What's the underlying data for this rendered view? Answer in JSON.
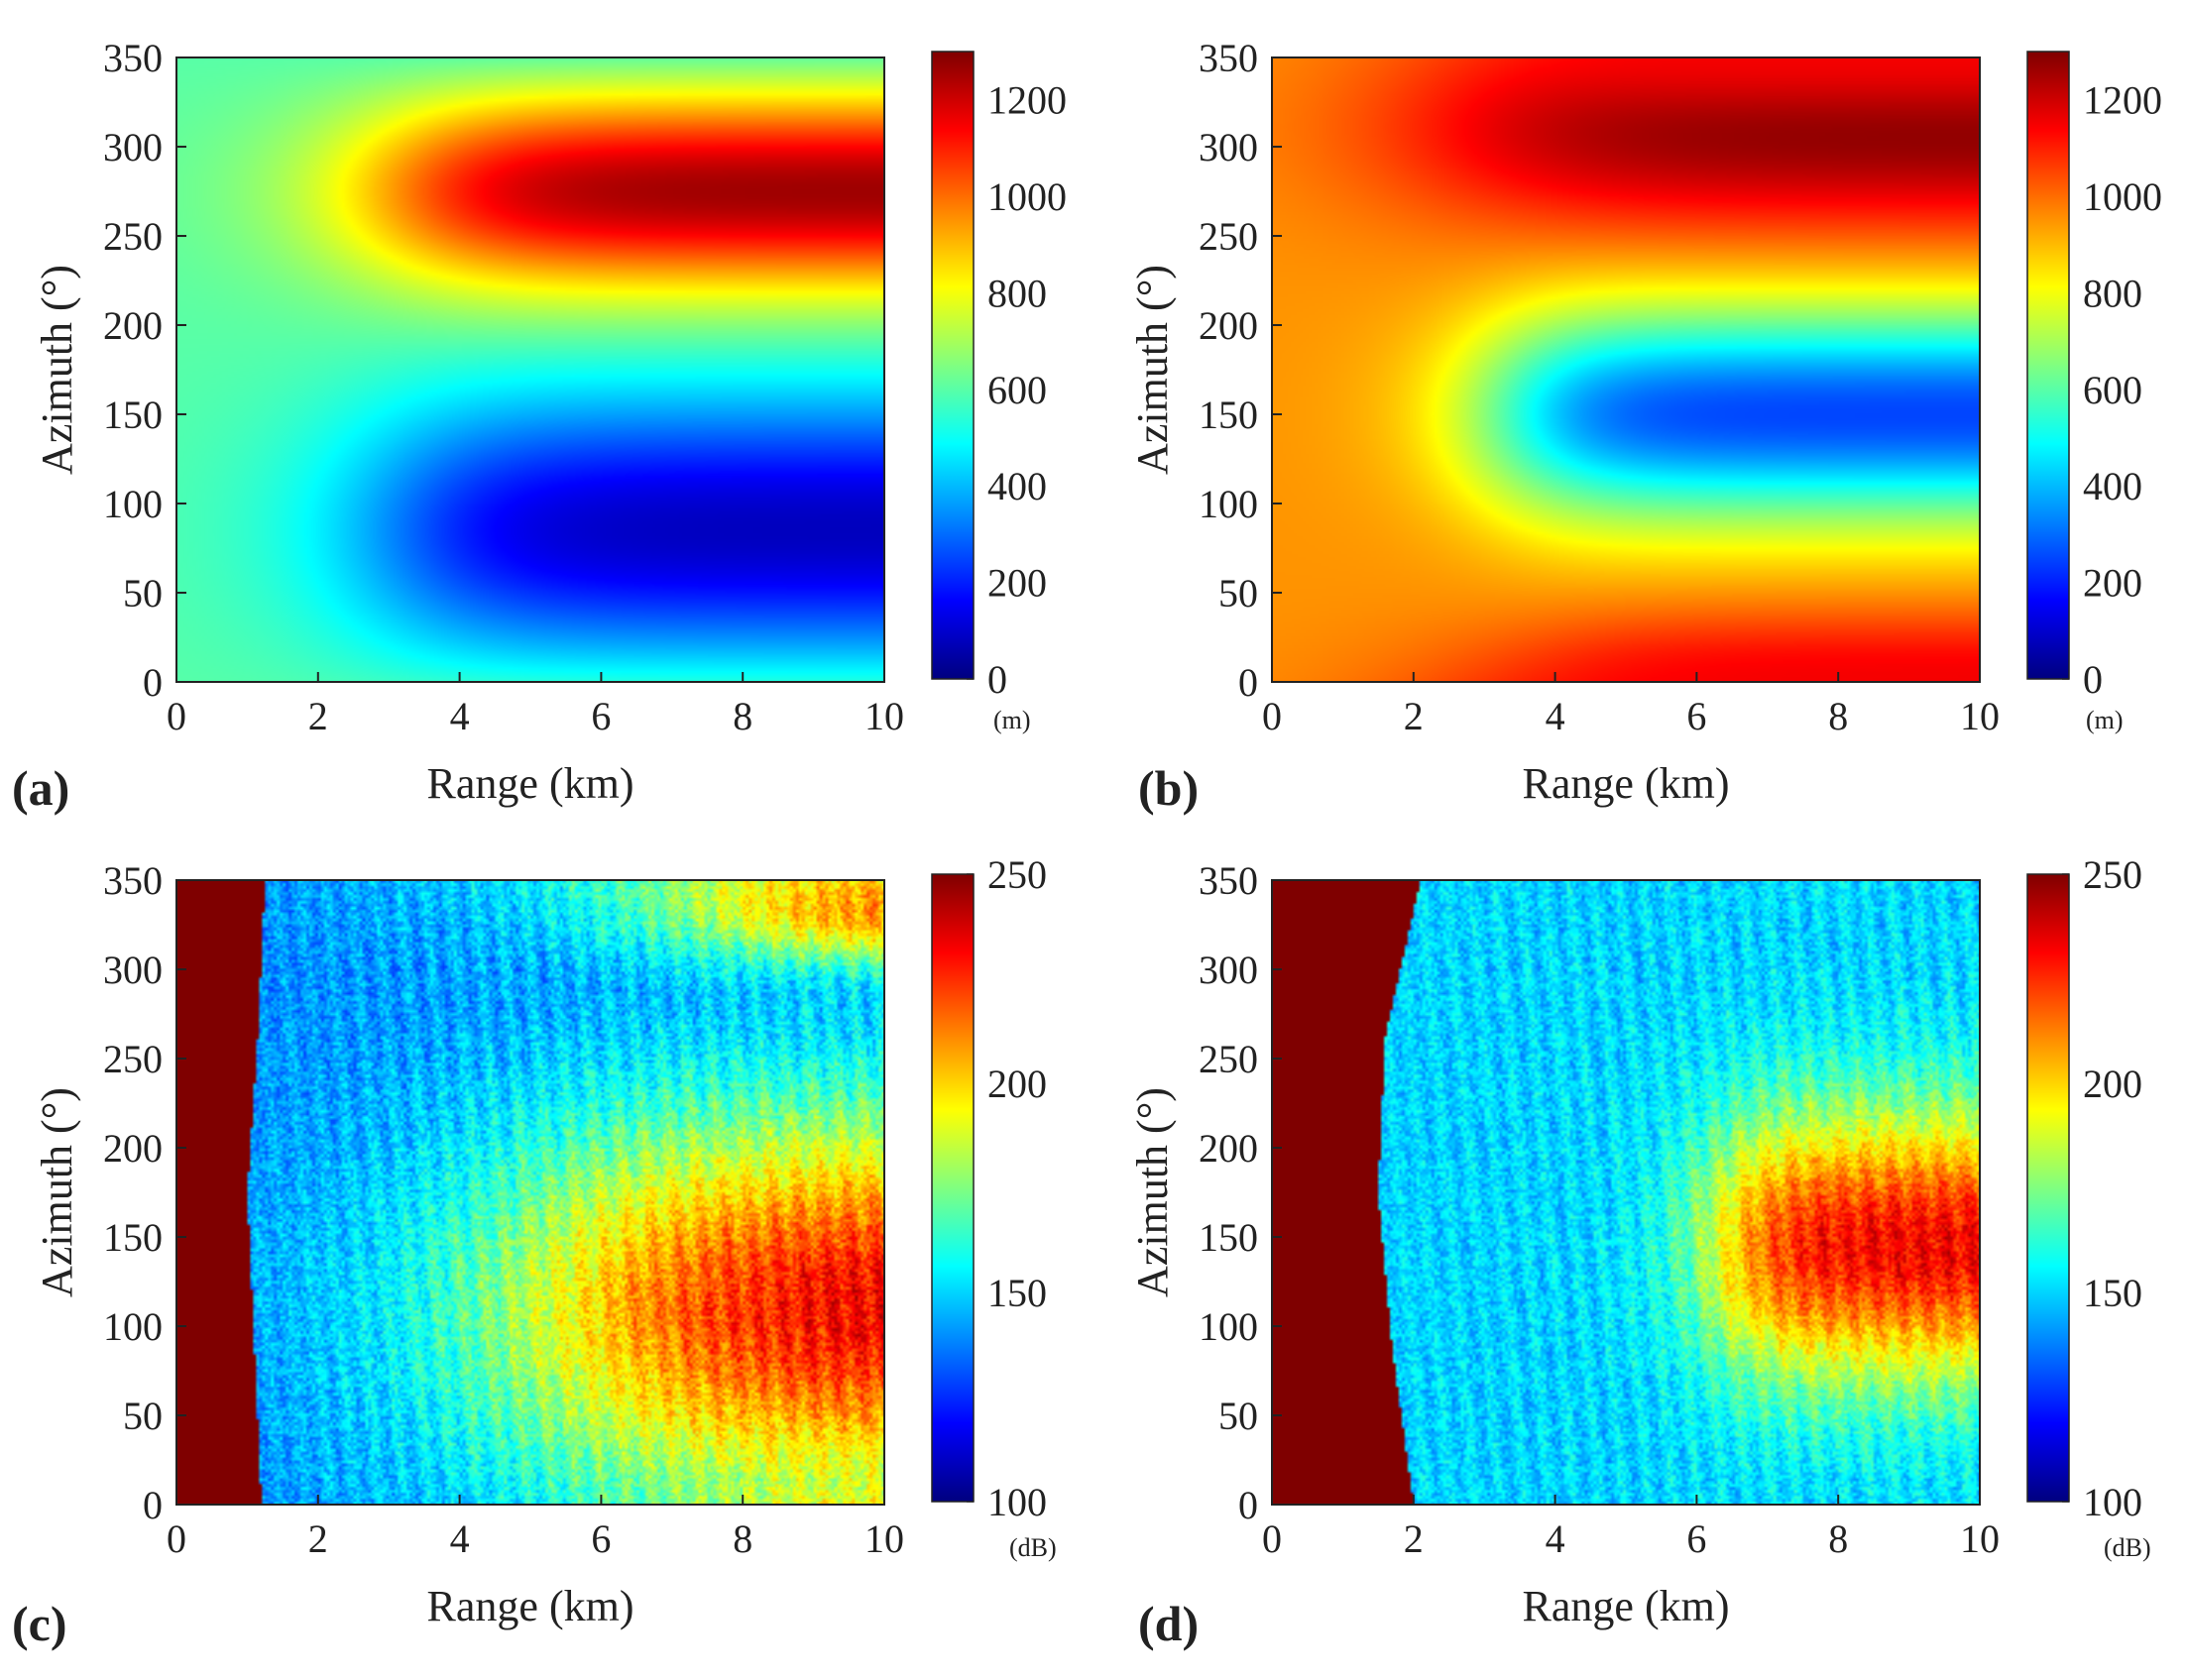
{
  "colormap": [
    "#00007f",
    "#0000ff",
    "#0080ff",
    "#00ffff",
    "#80ff80",
    "#ffff00",
    "#ff8000",
    "#ff0000",
    "#7f0000"
  ],
  "chart_data": [
    {
      "type": "heatmap",
      "panel": "(a)",
      "xlabel": "Range (km)",
      "ylabel": "Azimuth (°)",
      "xlim": [
        0,
        10
      ],
      "ylim": [
        0,
        350
      ],
      "x_ticks": [
        "0",
        "2",
        "4",
        "6",
        "8",
        "10"
      ],
      "y_ticks": [
        "0",
        "50",
        "100",
        "150",
        "200",
        "250",
        "300",
        "350"
      ],
      "colorbar": {
        "min": 0,
        "max": 1300,
        "ticks": [
          "0",
          "200",
          "400",
          "600",
          "800",
          "1000",
          "1200"
        ],
        "unit": "(m)"
      },
      "features": [
        {
          "kind": "base",
          "value": 600
        },
        {
          "kind": "band",
          "center_az": 85,
          "width_az": 75,
          "peak_value": 80,
          "x_start": 1.5,
          "x_ramp": 4.5,
          "x_width": 2.0
        },
        {
          "kind": "band",
          "center_az": 275,
          "width_az": 55,
          "peak_value": 1260,
          "x_start": 1.5,
          "x_ramp": 4.5,
          "x_width": 2.0
        }
      ]
    },
    {
      "type": "heatmap",
      "panel": "(b)",
      "xlabel": "Range (km)",
      "ylabel": "Azimuth (°)",
      "xlim": [
        0,
        10
      ],
      "ylim": [
        0,
        350
      ],
      "x_ticks": [
        "0",
        "2",
        "4",
        "6",
        "8",
        "10"
      ],
      "y_ticks": [
        "0",
        "50",
        "100",
        "150",
        "200",
        "250",
        "300",
        "350"
      ],
      "colorbar": {
        "min": 0,
        "max": 1300,
        "ticks": [
          "0",
          "200",
          "400",
          "600",
          "800",
          "1000",
          "1200"
        ],
        "unit": "(m)"
      },
      "features": [
        {
          "kind": "base",
          "value": 950
        },
        {
          "kind": "band",
          "center_az": 150,
          "width_az": 60,
          "peak_value": 250,
          "x_start": 2.5,
          "x_ramp": 4.0,
          "x_width": 1.5
        },
        {
          "kind": "band",
          "center_az": 310,
          "width_az": 55,
          "peak_value": 1290,
          "x_start": 1.0,
          "x_ramp": 4.0,
          "x_width": 2.5
        },
        {
          "kind": "band",
          "center_az": 0,
          "width_az": 35,
          "peak_value": 1150,
          "x_start": 4.0,
          "x_ramp": 4.0,
          "x_width": 2.0
        }
      ]
    },
    {
      "type": "heatmap",
      "panel": "(c)",
      "xlabel": "Range (km)",
      "ylabel": "Azimuth (°)",
      "xlim": [
        0,
        10
      ],
      "ylim": [
        0,
        350
      ],
      "x_ticks": [
        "0",
        "2",
        "4",
        "6",
        "8",
        "10"
      ],
      "y_ticks": [
        "0",
        "50",
        "100",
        "150",
        "200",
        "250",
        "300",
        "350"
      ],
      "colorbar": {
        "min": 100,
        "max": 250,
        "ticks": [
          "100",
          "150",
          "200",
          "250"
        ],
        "unit": "(dB)"
      },
      "features": [
        {
          "kind": "base",
          "value": 140
        },
        {
          "kind": "near_field",
          "value": 250,
          "edge_km": [
            1.2,
            1.1,
            1.0,
            1.15,
            1.25
          ]
        },
        {
          "kind": "band",
          "center_az": 110,
          "width_az": 110,
          "peak_value": 235,
          "x_start": 3.0,
          "x_ramp": 7.5,
          "x_width": 3.0
        },
        {
          "kind": "band",
          "center_az": 335,
          "width_az": 30,
          "peak_value": 215,
          "x_start": 6.0,
          "x_ramp": 9.5,
          "x_width": 2.0
        },
        {
          "kind": "noise",
          "amplitude": 10
        }
      ]
    },
    {
      "type": "heatmap",
      "panel": "(d)",
      "xlabel": "Range (km)",
      "ylabel": "Azimuth (°)",
      "xlim": [
        0,
        10
      ],
      "ylim": [
        0,
        350
      ],
      "x_ticks": [
        "0",
        "2",
        "4",
        "6",
        "8",
        "10"
      ],
      "y_ticks": [
        "0",
        "50",
        "100",
        "150",
        "200",
        "250",
        "300",
        "350"
      ],
      "colorbar": {
        "min": 100,
        "max": 250,
        "ticks": [
          "100",
          "150",
          "200",
          "250"
        ],
        "unit": "(dB)"
      },
      "features": [
        {
          "kind": "base",
          "value": 150
        },
        {
          "kind": "near_field",
          "value": 250,
          "edge_km": [
            2.0,
            1.7,
            1.5,
            1.6,
            2.1
          ]
        },
        {
          "kind": "band",
          "center_az": 145,
          "width_az": 75,
          "peak_value": 232,
          "x_start": 4.2,
          "x_ramp": 8.5,
          "x_width": 1.0
        },
        {
          "kind": "noise",
          "amplitude": 9
        }
      ]
    }
  ]
}
